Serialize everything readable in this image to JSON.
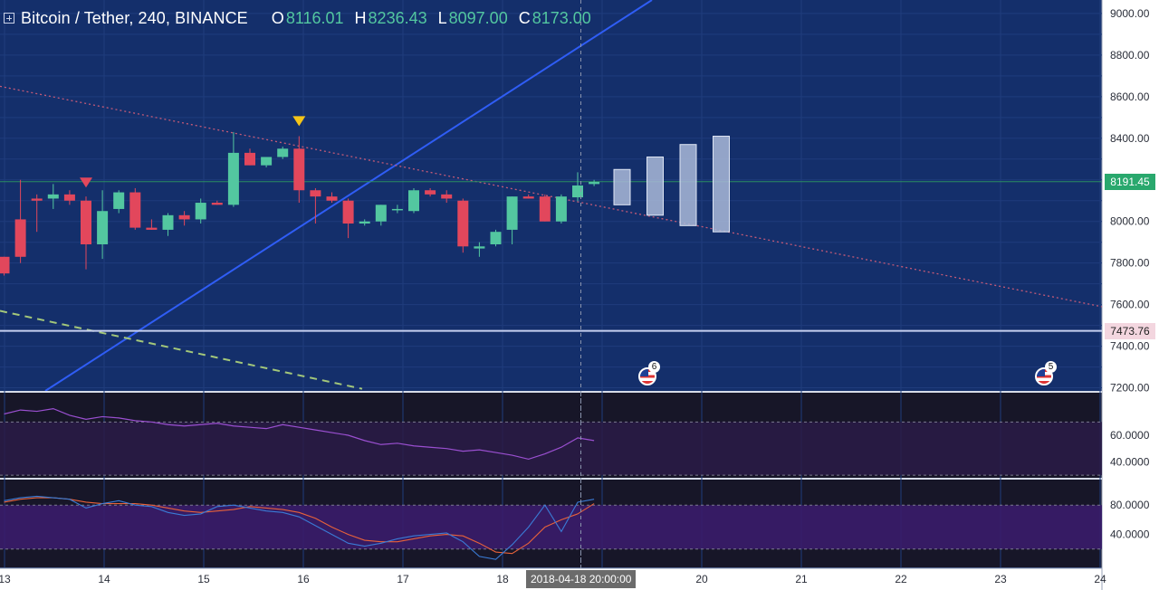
{
  "header": {
    "symbol_title": "Bitcoin / Tether, 240, BINANCE",
    "ohlc": {
      "o_label": "O",
      "o_value": "8116.01",
      "h_label": "H",
      "h_value": "8236.43",
      "l_label": "L",
      "l_value": "8097.00",
      "c_label": "C",
      "c_value": "8173.00"
    }
  },
  "crosshair_time_label": "2018-04-18 20:00:00",
  "events": {
    "badge_a_count": "6",
    "badge_b_count": "5"
  },
  "colors": {
    "background": "#142f6b",
    "up": "#53c7a0",
    "down": "#e2475c",
    "projection": "#a9b9d8",
    "trend_blue": "#2f5df5",
    "trend_dotted": "#c45a78",
    "trend_dashed": "#a3c77a",
    "level_line": "#c5cff0",
    "rsi_line": "#9a4fd0",
    "stoch_k": "#3a7bd5",
    "stoch_d": "#e8623a"
  },
  "chart_data": {
    "type": "candlestick",
    "symbol": "Bitcoin / Tether",
    "interval": "240",
    "exchange": "BINANCE",
    "y_ticks": [
      9000,
      8800,
      8600,
      8400,
      8200,
      8000,
      7800,
      7600,
      7400,
      7200
    ],
    "y_tick_labels": [
      "9000.00",
      "8800.00",
      "8600.00",
      "8400.00",
      "8000.00",
      "7800.00",
      "7600.00",
      "7400.00",
      "7200.00"
    ],
    "ylim": [
      7185,
      9065
    ],
    "x_tick_labels": [
      "13",
      "14",
      "15",
      "16",
      "17",
      "18",
      "19",
      "20",
      "21",
      "22",
      "23",
      "24"
    ],
    "last_price_label": "8191.45",
    "last_price": 8191.45,
    "horizontal_level_label": "7473.76",
    "horizontal_level": 7473.76,
    "candles": [
      [
        7830,
        7830,
        7740,
        7750
      ],
      [
        8010,
        8200,
        7800,
        7830
      ],
      [
        8110,
        8130,
        7950,
        8100
      ],
      [
        8110,
        8180,
        8060,
        8130
      ],
      [
        8130,
        8150,
        8080,
        8100
      ],
      [
        8100,
        8120,
        7770,
        7890
      ],
      [
        7890,
        8150,
        7820,
        8050
      ],
      [
        8060,
        8150,
        8040,
        8140
      ],
      [
        8140,
        8160,
        7960,
        7970
      ],
      [
        7970,
        8010,
        7960,
        7960
      ],
      [
        7960,
        8040,
        7930,
        8030
      ],
      [
        8030,
        8050,
        7980,
        8010
      ],
      [
        8010,
        8110,
        7990,
        8090
      ],
      [
        8090,
        8100,
        8080,
        8080
      ],
      [
        8080,
        8430,
        8070,
        8330
      ],
      [
        8330,
        8350,
        8270,
        8270
      ],
      [
        8270,
        8310,
        8260,
        8310
      ],
      [
        8310,
        8360,
        8300,
        8350
      ],
      [
        8350,
        8410,
        8090,
        8150
      ],
      [
        8150,
        8160,
        7990,
        8120
      ],
      [
        8120,
        8140,
        8090,
        8100
      ],
      [
        8100,
        8110,
        7920,
        7990
      ],
      [
        7990,
        8010,
        7980,
        8000
      ],
      [
        8000,
        8080,
        7980,
        8080
      ],
      [
        8060,
        8080,
        8040,
        8060
      ],
      [
        8050,
        8160,
        8040,
        8150
      ],
      [
        8150,
        8160,
        8120,
        8130
      ],
      [
        8130,
        8150,
        8090,
        8110
      ],
      [
        8100,
        8110,
        7850,
        7880
      ],
      [
        7870,
        7900,
        7830,
        7880
      ],
      [
        7890,
        7960,
        7880,
        7950
      ],
      [
        7960,
        8120,
        7890,
        8120
      ],
      [
        8120,
        8130,
        8110,
        8110
      ],
      [
        8120,
        8130,
        8000,
        8000
      ],
      [
        8000,
        8130,
        7990,
        8120
      ],
      [
        8116.01,
        8236.43,
        8097.0,
        8173.0
      ],
      [
        8180,
        8200,
        8170,
        8190
      ]
    ],
    "projection_boxes": [
      [
        8080,
        8250
      ],
      [
        8030,
        8310
      ],
      [
        7980,
        8370
      ],
      [
        7950,
        8410
      ]
    ],
    "triangle_markers": [
      {
        "candle_index": 5,
        "price": 8185
      },
      {
        "candle_index": 18,
        "price": 8480
      }
    ],
    "rsi": {
      "y_tick_labels": [
        "60.0000",
        "40.0000"
      ],
      "ylim": [
        28,
        92
      ],
      "upper_band": 70,
      "lower_band": 30,
      "values": [
        76,
        79,
        78,
        80,
        75,
        72,
        74,
        73,
        71,
        70,
        68,
        67,
        68,
        69,
        67,
        66,
        65,
        68,
        66,
        64,
        62,
        60,
        56,
        53,
        54,
        52,
        51,
        50,
        48,
        49,
        47,
        45,
        42,
        46,
        51,
        58,
        56
      ]
    },
    "stochastic": {
      "y_tick_labels": [
        "80.0000",
        "40.0000"
      ],
      "ylim": [
        0,
        100
      ],
      "upper_band": 80,
      "lower_band": 20,
      "k": [
        86,
        90,
        92,
        90,
        88,
        76,
        82,
        86,
        80,
        78,
        70,
        66,
        68,
        78,
        80,
        76,
        72,
        70,
        64,
        52,
        40,
        28,
        24,
        28,
        34,
        38,
        40,
        42,
        30,
        10,
        6,
        26,
        50,
        80,
        44,
        84,
        88
      ],
      "d": [
        84,
        88,
        90,
        90,
        88,
        84,
        82,
        82,
        82,
        80,
        76,
        72,
        70,
        72,
        74,
        78,
        76,
        74,
        70,
        62,
        50,
        40,
        32,
        30,
        30,
        34,
        38,
        40,
        38,
        28,
        16,
        14,
        28,
        50,
        60,
        68,
        82
      ]
    }
  }
}
